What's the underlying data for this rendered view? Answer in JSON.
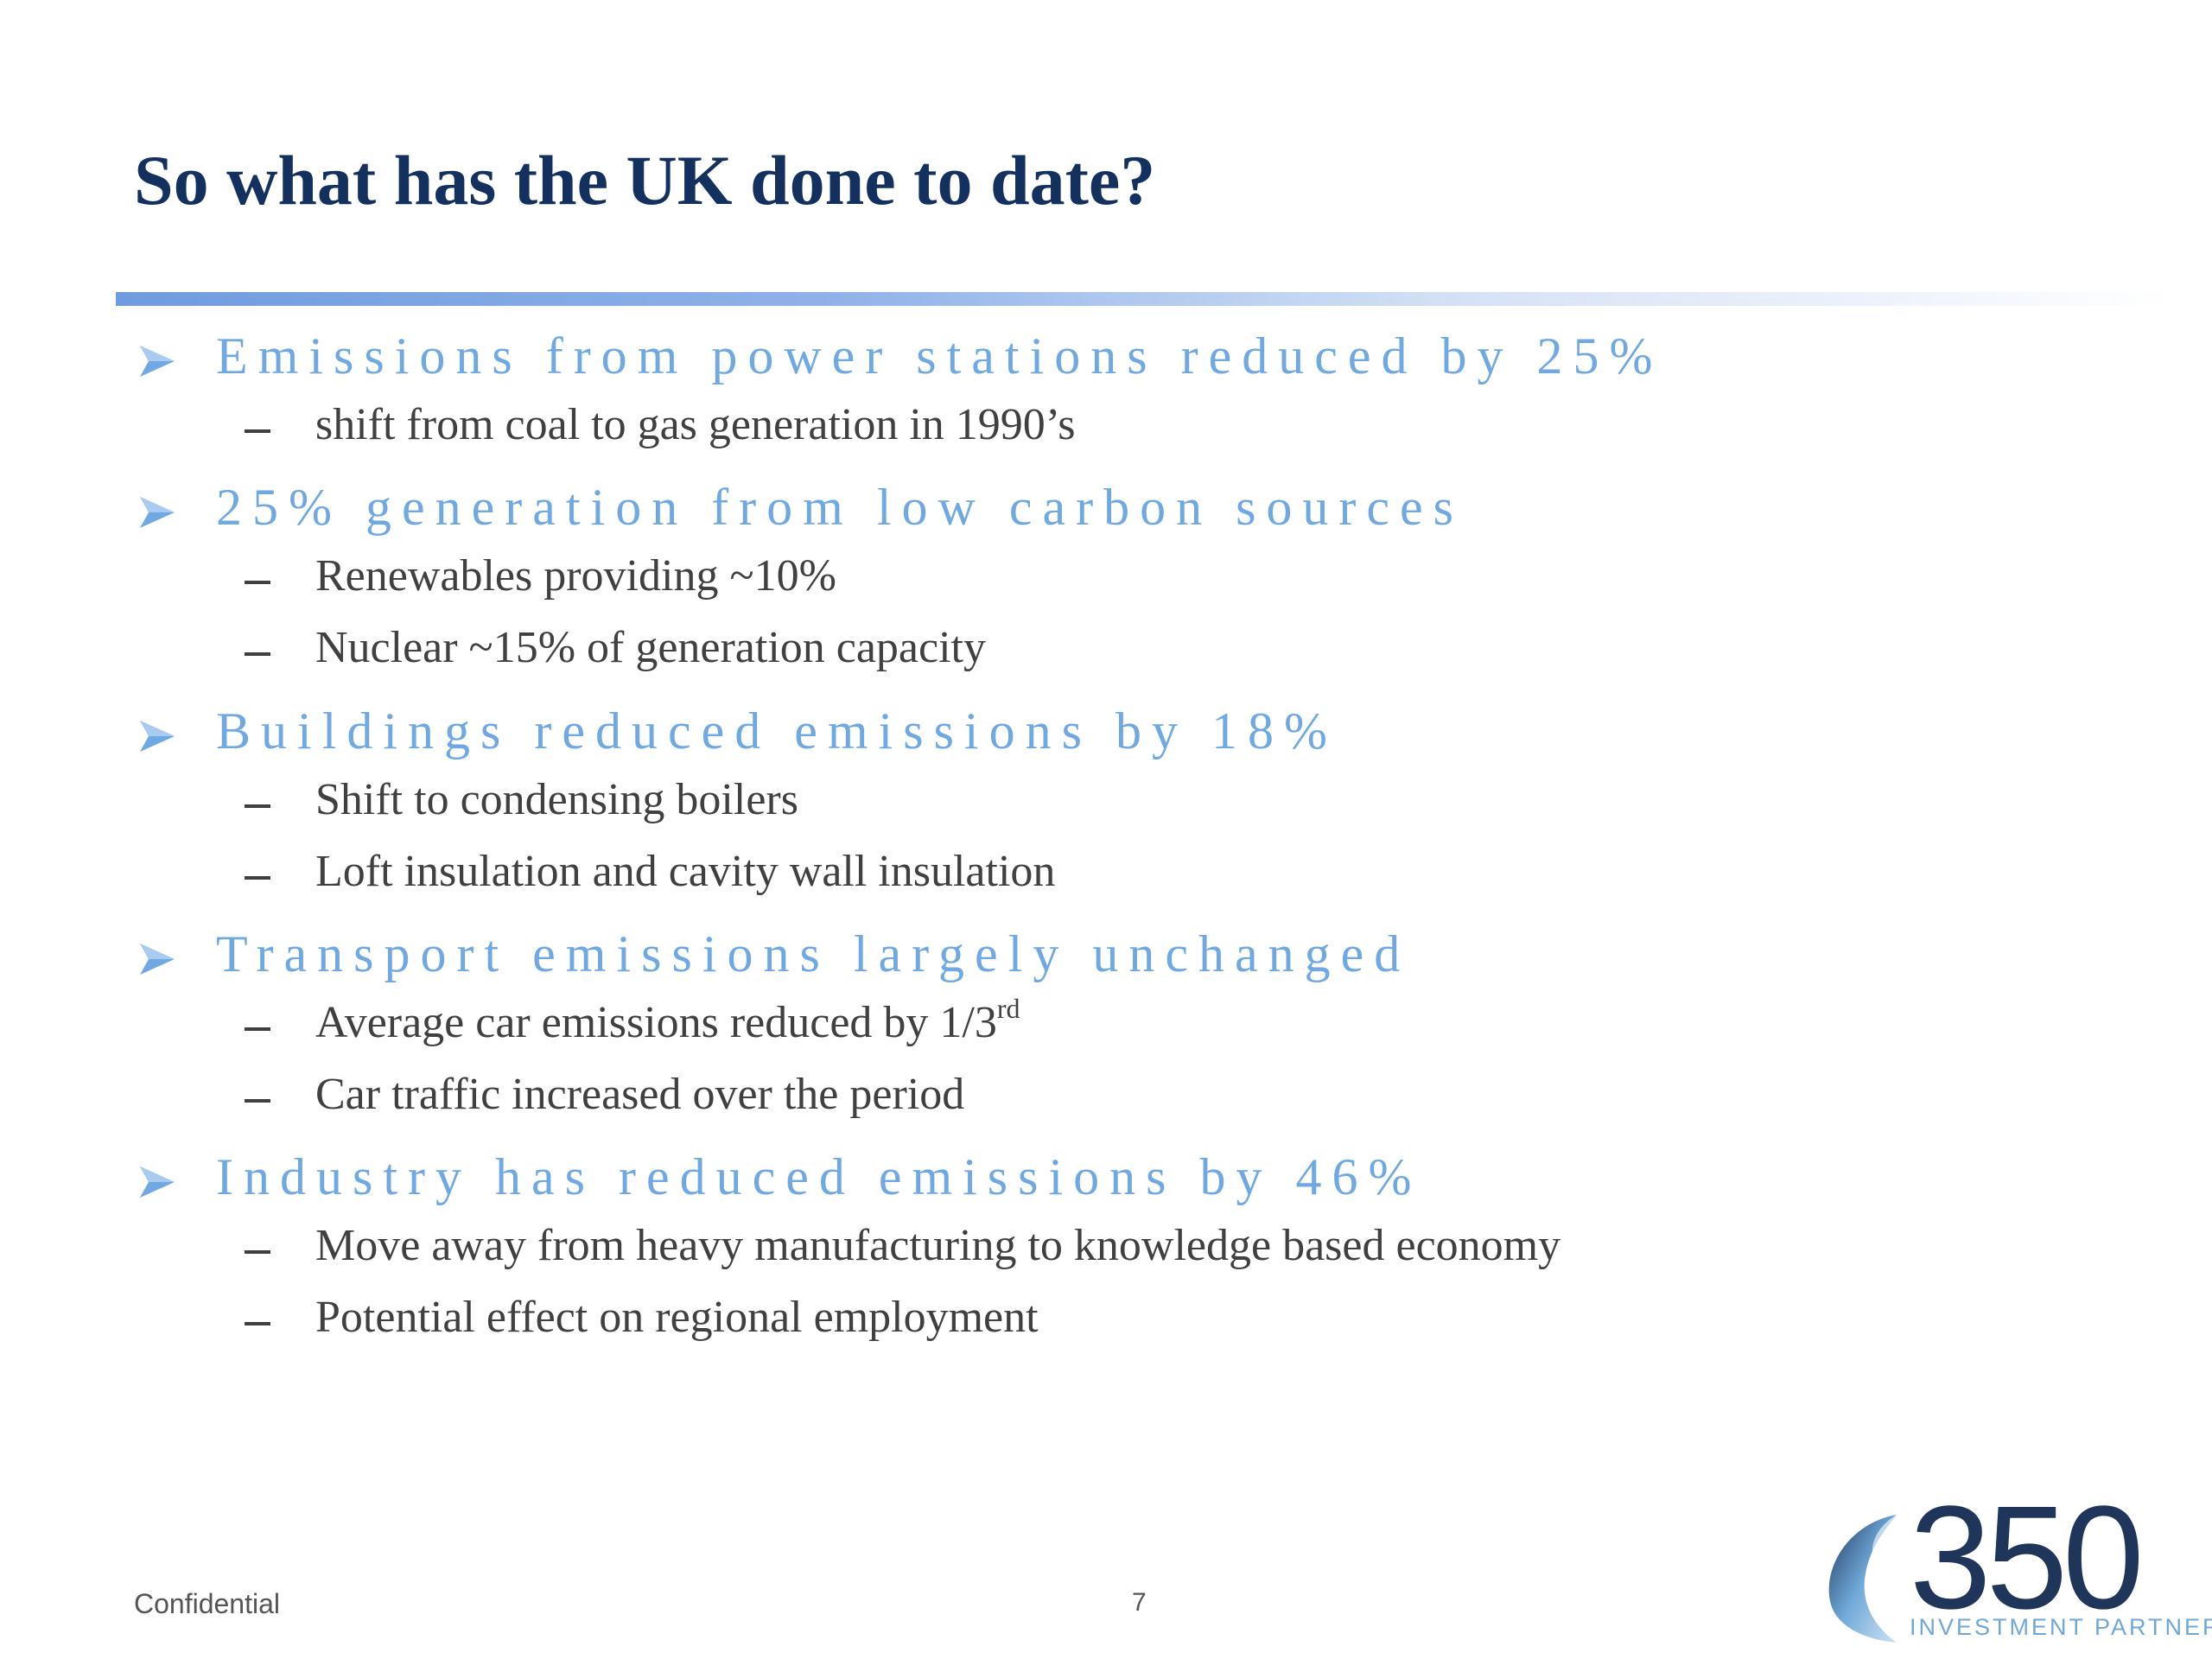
{
  "slide": {
    "title": "So what has the UK done to date?",
    "sections": [
      {
        "heading": "Emissions from power stations reduced by 25%",
        "points": [
          {
            "text": "shift from coal to gas generation in 1990’s"
          }
        ]
      },
      {
        "heading": "25% generation from low carbon sources",
        "points": [
          {
            "text": "Renewables providing ~10%"
          },
          {
            "text": "Nuclear ~15% of generation capacity"
          }
        ]
      },
      {
        "heading": "Buildings reduced emissions by 18%",
        "points": [
          {
            "text": "Shift to condensing boilers"
          },
          {
            "text": "Loft insulation and cavity wall insulation"
          }
        ]
      },
      {
        "heading": "Transport emissions largely unchanged",
        "points": [
          {
            "text": "Average car emissions reduced by 1/3",
            "sup": "rd"
          },
          {
            "text": "Car traffic increased over the period"
          }
        ]
      },
      {
        "heading": "Industry has reduced emissions by 46%",
        "points": [
          {
            "text": "Move away from heavy manufacturing to knowledge based economy"
          },
          {
            "text": "Potential effect on regional employment"
          }
        ]
      }
    ]
  },
  "footer": {
    "confidential": "Confidential",
    "page_number": "7"
  },
  "logo": {
    "number": "350",
    "tagline": "INVESTMENT PARTNERS"
  },
  "colors": {
    "title": "#14305f",
    "heading": "#6fa8e2",
    "body": "#404040"
  }
}
